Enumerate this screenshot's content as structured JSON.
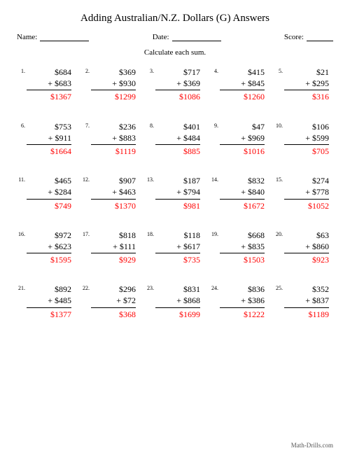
{
  "title": "Adding Australian/N.Z. Dollars (G) Answers",
  "header": {
    "name_label": "Name:",
    "date_label": "Date:",
    "score_label": "Score:"
  },
  "instruction": "Calculate each sum.",
  "currency": "$",
  "operator": "+",
  "answer_color": "#ff0000",
  "problems": [
    {
      "n": "1.",
      "a": "$684",
      "b": "+ $683",
      "ans": "$1367"
    },
    {
      "n": "2.",
      "a": "$369",
      "b": "+ $930",
      "ans": "$1299"
    },
    {
      "n": "3.",
      "a": "$717",
      "b": "+ $369",
      "ans": "$1086"
    },
    {
      "n": "4.",
      "a": "$415",
      "b": "+ $845",
      "ans": "$1260"
    },
    {
      "n": "5.",
      "a": "$21",
      "b": "+ $295",
      "ans": "$316"
    },
    {
      "n": "6.",
      "a": "$753",
      "b": "+ $911",
      "ans": "$1664"
    },
    {
      "n": "7.",
      "a": "$236",
      "b": "+ $883",
      "ans": "$1119"
    },
    {
      "n": "8.",
      "a": "$401",
      "b": "+ $484",
      "ans": "$885"
    },
    {
      "n": "9.",
      "a": "$47",
      "b": "+ $969",
      "ans": "$1016"
    },
    {
      "n": "10.",
      "a": "$106",
      "b": "+ $599",
      "ans": "$705"
    },
    {
      "n": "11.",
      "a": "$465",
      "b": "+ $284",
      "ans": "$749"
    },
    {
      "n": "12.",
      "a": "$907",
      "b": "+ $463",
      "ans": "$1370"
    },
    {
      "n": "13.",
      "a": "$187",
      "b": "+ $794",
      "ans": "$981"
    },
    {
      "n": "14.",
      "a": "$832",
      "b": "+ $840",
      "ans": "$1672"
    },
    {
      "n": "15.",
      "a": "$274",
      "b": "+ $778",
      "ans": "$1052"
    },
    {
      "n": "16.",
      "a": "$972",
      "b": "+ $623",
      "ans": "$1595"
    },
    {
      "n": "17.",
      "a": "$818",
      "b": "+ $111",
      "ans": "$929"
    },
    {
      "n": "18.",
      "a": "$118",
      "b": "+ $617",
      "ans": "$735"
    },
    {
      "n": "19.",
      "a": "$668",
      "b": "+ $835",
      "ans": "$1503"
    },
    {
      "n": "20.",
      "a": "$63",
      "b": "+ $860",
      "ans": "$923"
    },
    {
      "n": "21.",
      "a": "$892",
      "b": "+ $485",
      "ans": "$1377"
    },
    {
      "n": "22.",
      "a": "$296",
      "b": "+ $72",
      "ans": "$368"
    },
    {
      "n": "23.",
      "a": "$831",
      "b": "+ $868",
      "ans": "$1699"
    },
    {
      "n": "24.",
      "a": "$836",
      "b": "+ $386",
      "ans": "$1222"
    },
    {
      "n": "25.",
      "a": "$352",
      "b": "+ $837",
      "ans": "$1189"
    }
  ],
  "footer": "Math-Drills.com"
}
